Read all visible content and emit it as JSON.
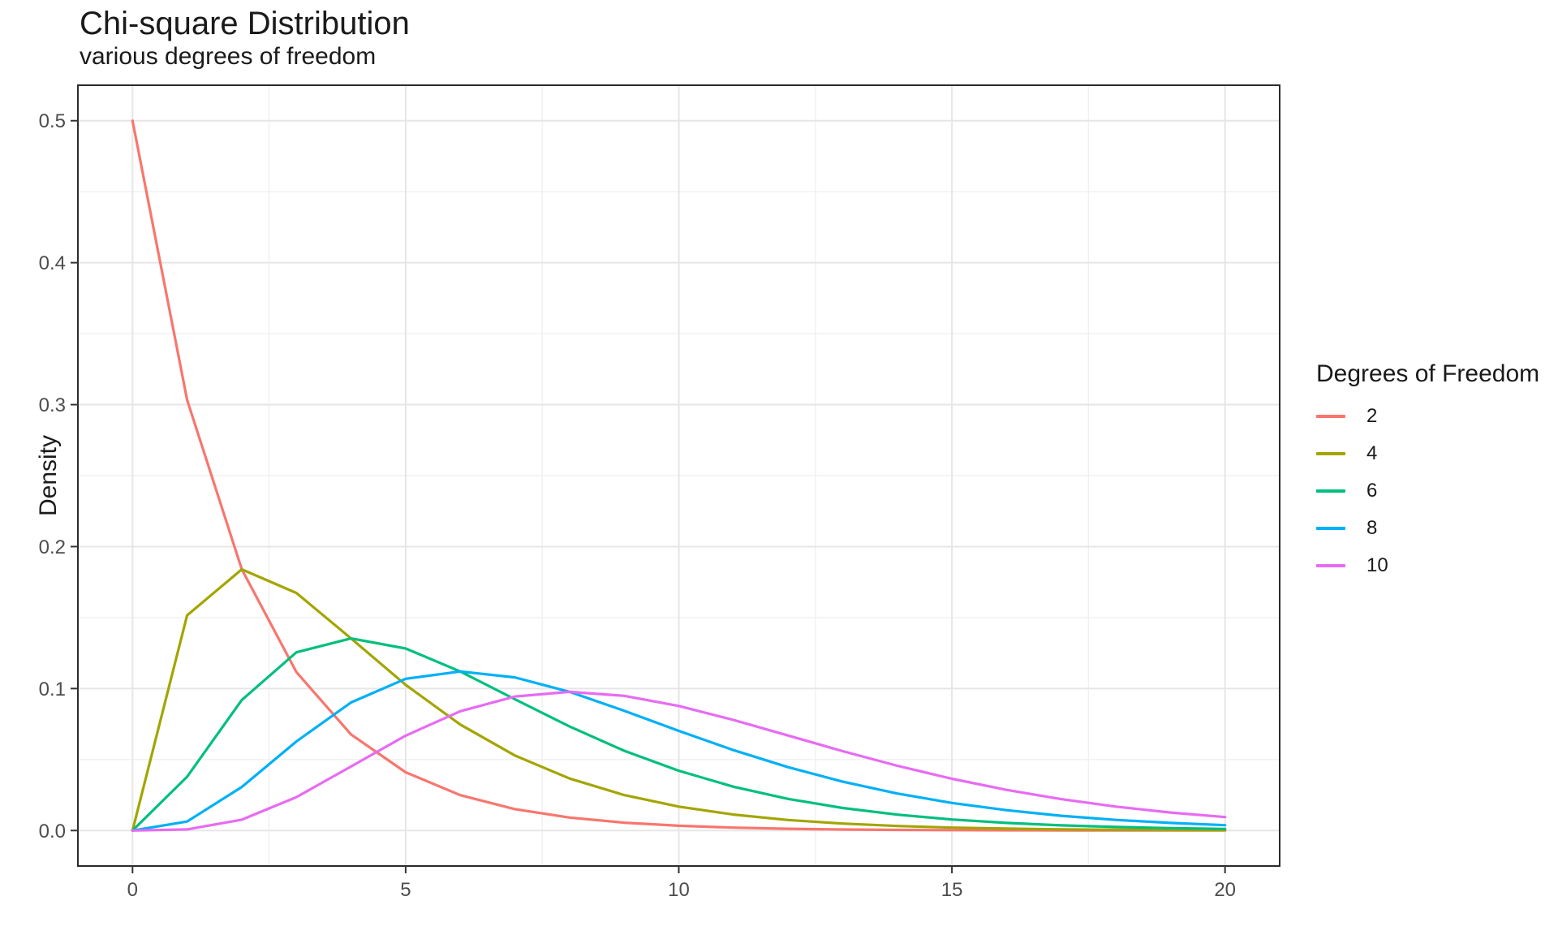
{
  "chart_data": {
    "type": "line",
    "title": "Chi-square Distribution",
    "subtitle": "various degrees of freedom",
    "xlabel": "",
    "ylabel": "Density",
    "legend_title": "Degrees of Freedom",
    "legend_position": "right",
    "grid": "major+minor",
    "xlim": [
      -1,
      21
    ],
    "ylim": [
      -0.025,
      0.525
    ],
    "xticks": {
      "values": [
        0,
        5,
        10,
        15,
        20
      ],
      "labels": [
        "0",
        "5",
        "10",
        "15",
        "20"
      ]
    },
    "yticks": {
      "values": [
        0,
        0.1,
        0.2,
        0.3,
        0.4,
        0.5
      ],
      "labels": [
        "0.0",
        "0.1",
        "0.2",
        "0.3",
        "0.4",
        "0.5"
      ]
    },
    "x": [
      0,
      1,
      2,
      3,
      4,
      5,
      6,
      7,
      8,
      9,
      10,
      11,
      12,
      13,
      14,
      15,
      16,
      17,
      18,
      19,
      20
    ],
    "series": [
      {
        "name": "2",
        "color": "#F8766D",
        "values": [
          0.5,
          0.30327,
          0.18394,
          0.11157,
          0.06767,
          0.04104,
          0.02489,
          0.0151,
          0.00916,
          0.00555,
          0.00337,
          0.00204,
          0.00124,
          0.00075,
          0.00046,
          0.00028,
          0.00017,
          0.0001,
          6e-05,
          4e-05,
          2e-05
        ]
      },
      {
        "name": "4",
        "color": "#A3A500",
        "values": [
          0,
          0.15163,
          0.18394,
          0.16735,
          0.13534,
          0.1026,
          0.07468,
          0.05285,
          0.03663,
          0.02497,
          0.01684,
          0.01123,
          0.00744,
          0.00489,
          0.0032,
          0.00207,
          0.00134,
          0.00086,
          0.00055,
          0.00036,
          0.00023
        ]
      },
      {
        "name": "6",
        "color": "#00BF7D",
        "values": [
          0,
          0.03791,
          0.09197,
          0.12551,
          0.13534,
          0.12825,
          0.11202,
          0.0925,
          0.07326,
          0.0562,
          0.04211,
          0.03088,
          0.02231,
          0.01588,
          0.01118,
          0.00778,
          0.00537,
          0.00367,
          0.0025,
          0.00168,
          0.00113
        ]
      },
      {
        "name": "8",
        "color": "#00B0F6",
        "values": [
          0,
          0.00632,
          0.03066,
          0.06276,
          0.09022,
          0.10688,
          0.11202,
          0.10789,
          0.09768,
          0.08436,
          0.07019,
          0.05666,
          0.04462,
          0.03441,
          0.02607,
          0.01944,
          0.01431,
          0.01041,
          0.0075,
          0.00535,
          0.00378
        ]
      },
      {
        "name": "10",
        "color": "#E76BF3",
        "values": [
          0,
          0.00079,
          0.00766,
          0.02353,
          0.04511,
          0.0668,
          0.08401,
          0.0944,
          0.09768,
          0.0949,
          0.08773,
          0.07791,
          0.06693,
          0.05591,
          0.04561,
          0.03646,
          0.02863,
          0.02213,
          0.01687,
          0.0127,
          0.00946
        ]
      }
    ],
    "style": {
      "panel_border_color": "#2b2b2b",
      "grid_major_color": "#e6e6e6",
      "grid_minor_color": "#f0f0f0",
      "tick_color": "#333333",
      "tick_label_color": "#4d4d4d"
    }
  }
}
